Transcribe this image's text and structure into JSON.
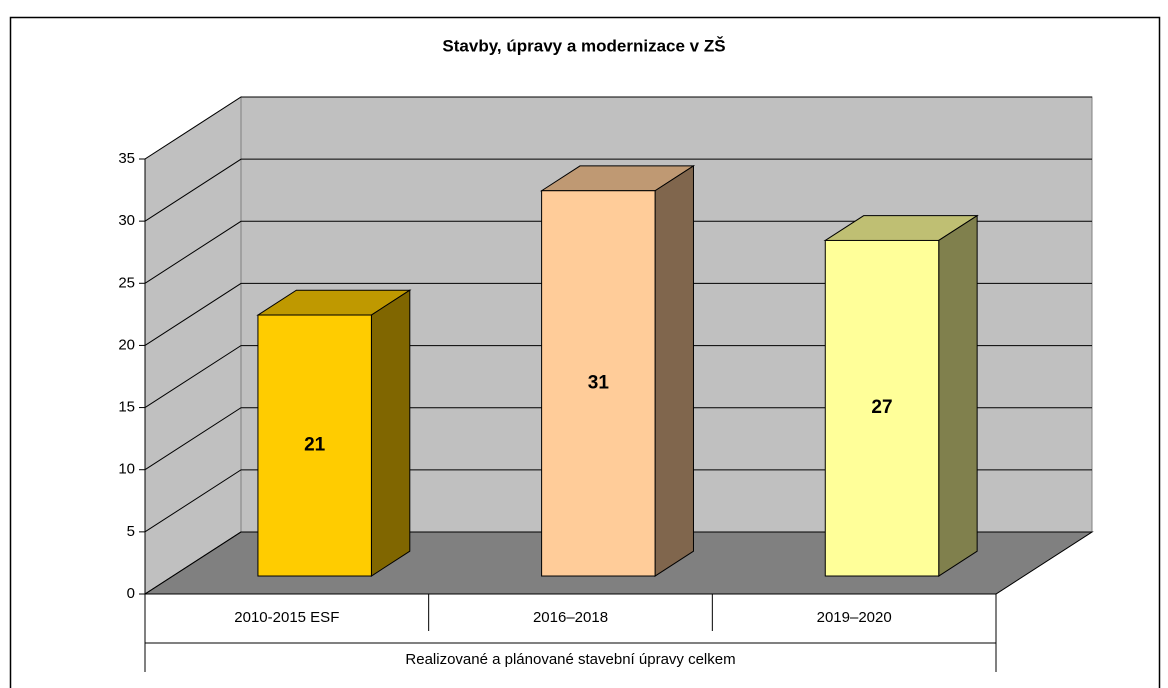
{
  "chart_data": {
    "type": "bar3d",
    "title": "Stavby, úpravy a modernizace v ZŠ",
    "categories": [
      "2010-2015 ESF",
      "2016–2018",
      "2019–2020"
    ],
    "x_group_label": "Realizované a plánované stavební úpravy celkem",
    "values": [
      21,
      31,
      27
    ],
    "colors": [
      "#FFCC00",
      "#FFCC99",
      "#FFFF99"
    ],
    "ylim": [
      0,
      35
    ],
    "yticks": [
      0,
      5,
      10,
      15,
      20,
      25,
      30,
      35
    ],
    "grid": true
  }
}
